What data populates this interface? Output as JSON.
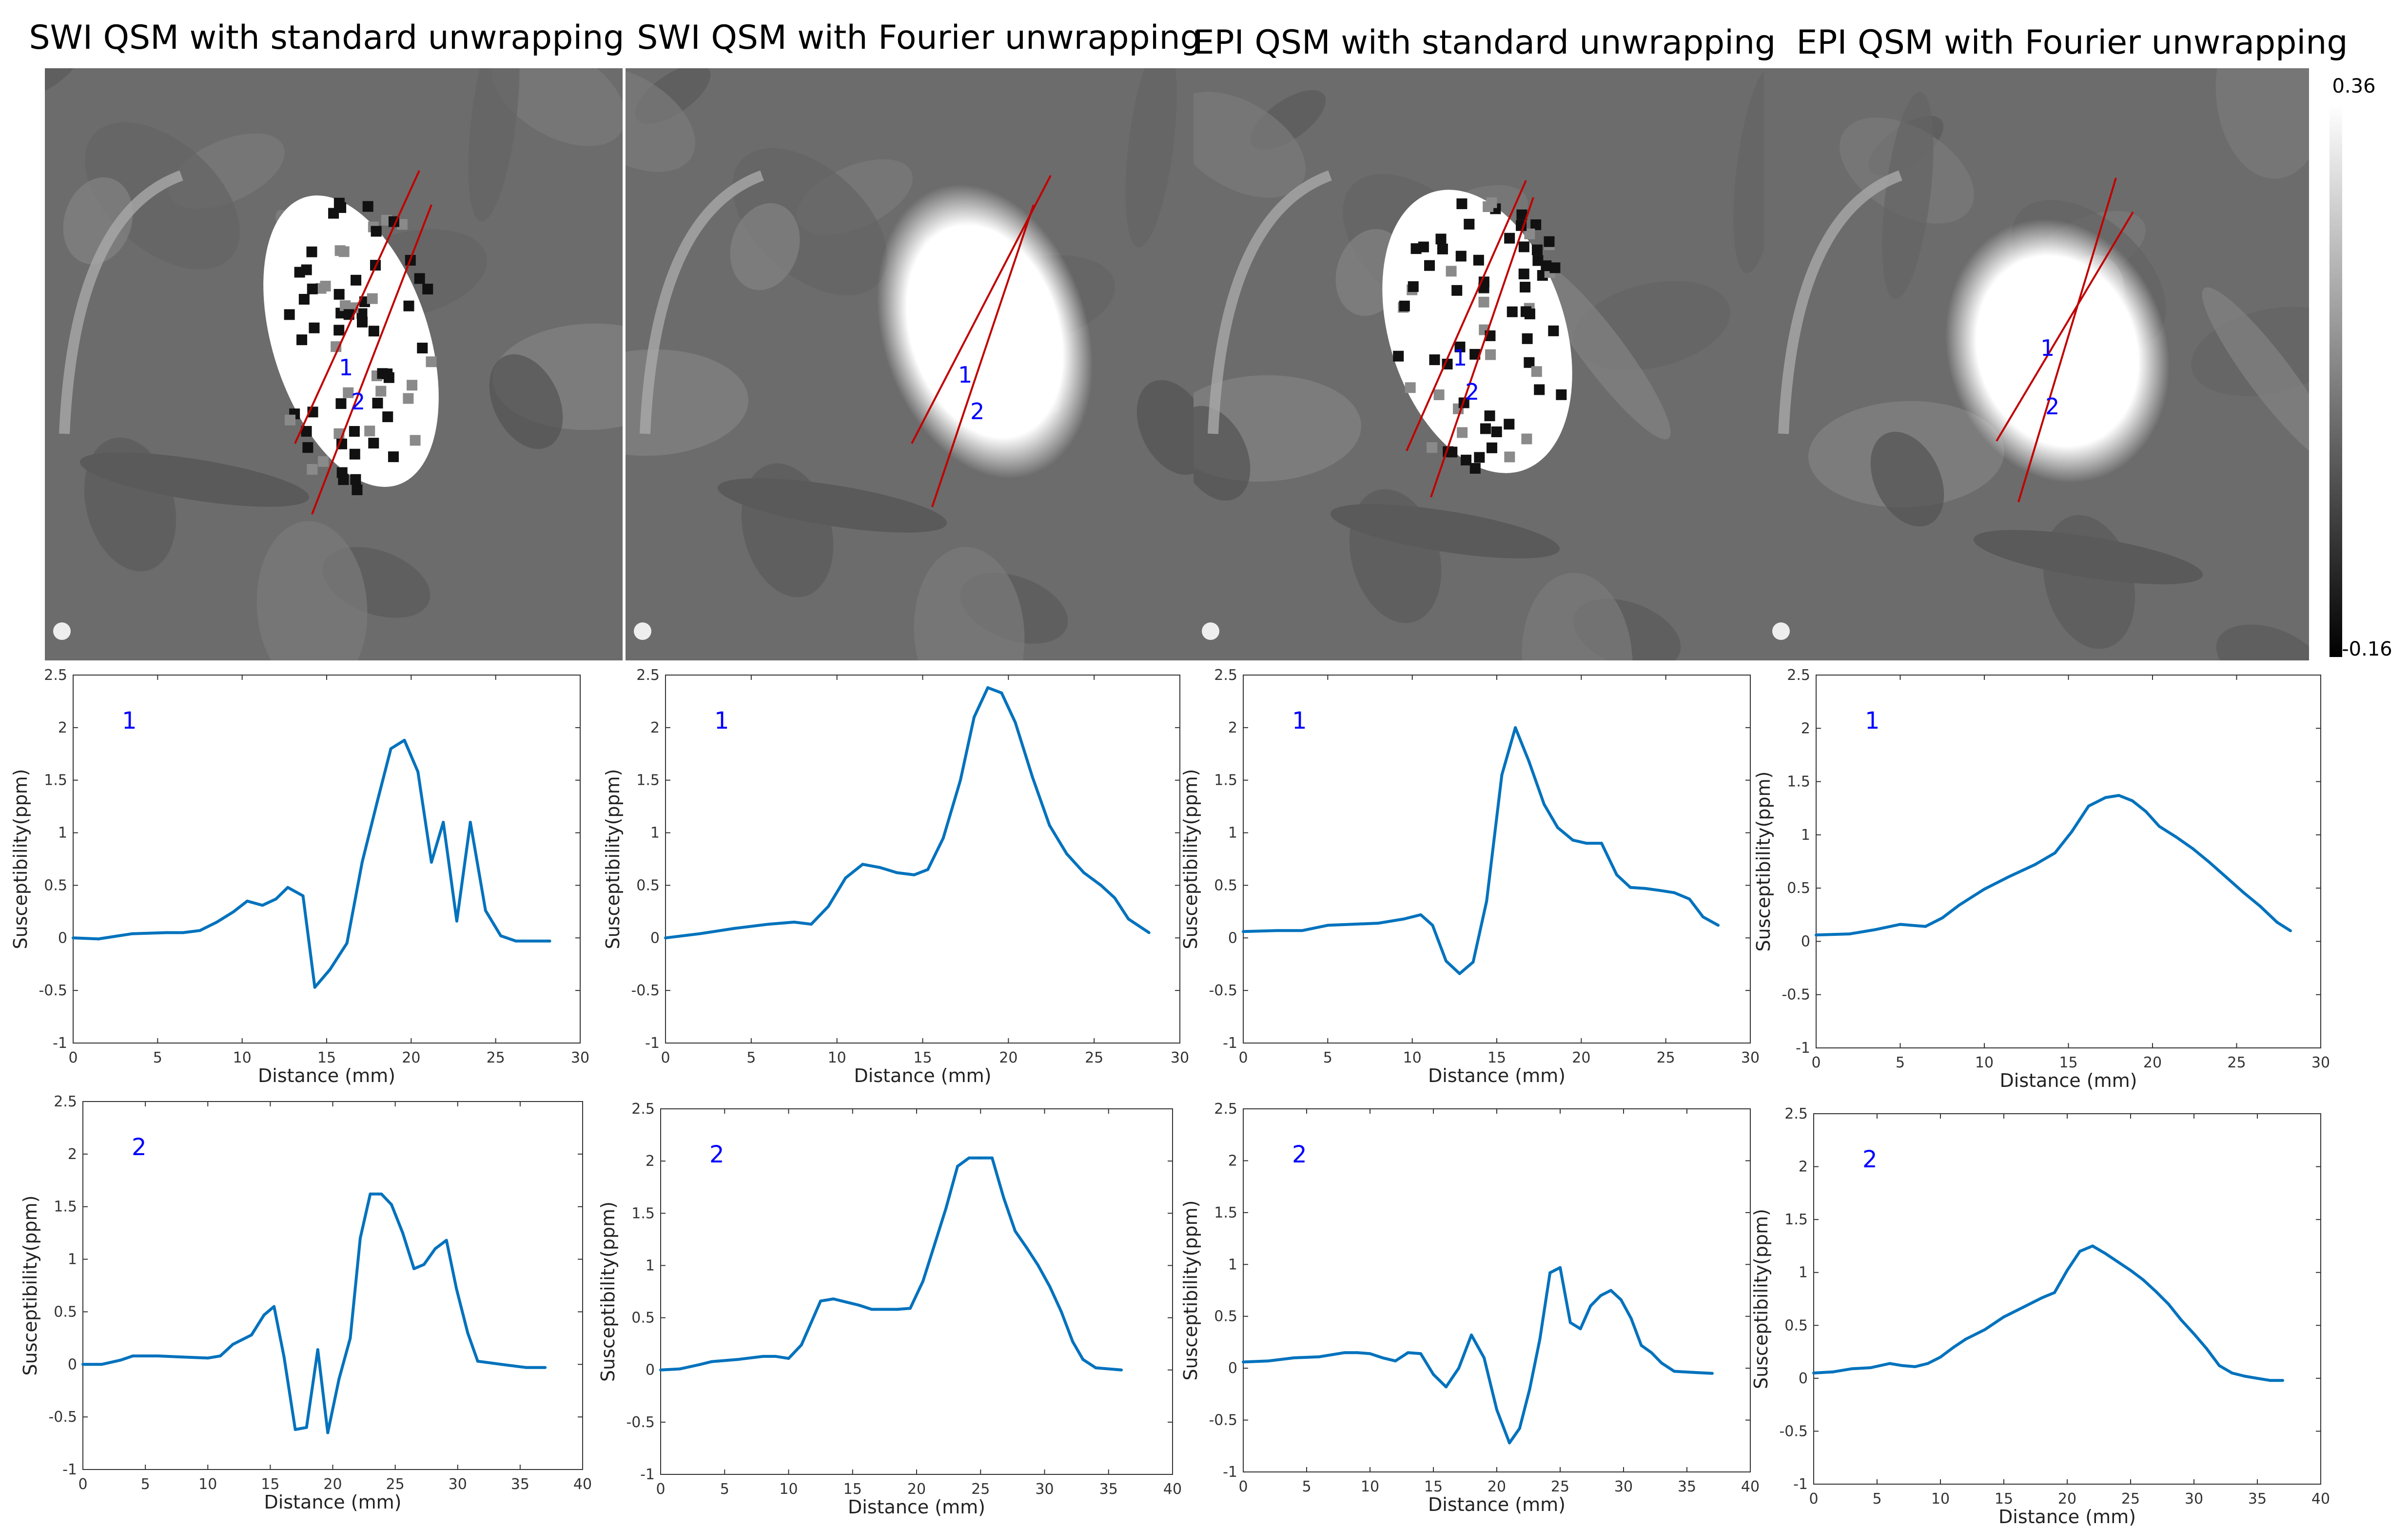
{
  "panels": [
    {
      "title": "SWI QSM with standard unwrapping",
      "mode": "raw"
    },
    {
      "title": "SWI QSM with Fourier unwrapping",
      "mode": "smooth"
    },
    {
      "title": "EPI QSM with standard unwrapping",
      "mode": "raw"
    },
    {
      "title": "EPI QSM with Fourier unwrapping",
      "mode": "smooth"
    }
  ],
  "image_line_labels": [
    "1",
    "2"
  ],
  "colorbar": {
    "max_label": "0.36",
    "min_label": "-0.16"
  },
  "colors": {
    "line": "#0072BD",
    "profile_line": "#C00000",
    "line_label": "#0000FF"
  },
  "chart_data": [
    {
      "type": "line",
      "panel": "SWI QSM with standard unwrapping",
      "label": "1",
      "xlabel": "Distance (mm)",
      "ylabel": "Susceptibility(ppm)",
      "xlim": [
        0,
        30
      ],
      "ylim": [
        -1,
        2.5
      ],
      "xticks": [
        0,
        5,
        10,
        15,
        20,
        25,
        30
      ],
      "yticks": [
        -1,
        -0.5,
        0,
        0.5,
        1,
        1.5,
        2,
        2.5
      ],
      "x": [
        0,
        1.5,
        3.5,
        5.5,
        6.5,
        7.5,
        8.5,
        9.5,
        10.3,
        11.2,
        12,
        12.7,
        13.6,
        14.3,
        15.2,
        16.2,
        17.1,
        18,
        18.8,
        19.6,
        20.4,
        21.2,
        21.9,
        22.7,
        23.5,
        24.4,
        25.3,
        26.2,
        28.2
      ],
      "y": [
        0,
        -0.01,
        0.04,
        0.05,
        0.05,
        0.07,
        0.15,
        0.25,
        0.35,
        0.31,
        0.37,
        0.48,
        0.4,
        -0.47,
        -0.3,
        -0.05,
        0.72,
        1.3,
        1.8,
        1.88,
        1.58,
        0.72,
        1.1,
        0.16,
        1.1,
        0.26,
        0.02,
        -0.03,
        -0.03
      ]
    },
    {
      "type": "line",
      "panel": "SWI QSM with Fourier unwrapping",
      "label": "1",
      "xlabel": "Distance (mm)",
      "ylabel": "Susceptibility(ppm)",
      "xlim": [
        0,
        30
      ],
      "ylim": [
        -1,
        2.5
      ],
      "xticks": [
        0,
        5,
        10,
        15,
        20,
        25,
        30
      ],
      "yticks": [
        -1,
        -0.5,
        0,
        0.5,
        1,
        1.5,
        2,
        2.5
      ],
      "x": [
        0,
        2,
        4,
        6,
        7.5,
        8.5,
        9.5,
        10.5,
        11.5,
        12.5,
        13.5,
        14.5,
        15.3,
        16.2,
        17.2,
        18,
        18.8,
        19.6,
        20.4,
        21.4,
        22.4,
        23.4,
        24.4,
        25.4,
        26.2,
        27,
        28.2
      ],
      "y": [
        0,
        0.04,
        0.09,
        0.13,
        0.15,
        0.13,
        0.3,
        0.57,
        0.7,
        0.67,
        0.62,
        0.6,
        0.65,
        0.95,
        1.5,
        2.1,
        2.38,
        2.33,
        2.05,
        1.53,
        1.07,
        0.8,
        0.62,
        0.5,
        0.38,
        0.18,
        0.05
      ]
    },
    {
      "type": "line",
      "panel": "EPI QSM with standard unwrapping",
      "label": "1",
      "xlabel": "Distance (mm)",
      "ylabel": "Susceptibility(ppm)",
      "xlim": [
        0,
        30
      ],
      "ylim": [
        -1,
        2.5
      ],
      "xticks": [
        0,
        5,
        10,
        15,
        20,
        25,
        30
      ],
      "yticks": [
        -1,
        -0.5,
        0,
        0.5,
        1,
        1.5,
        2,
        2.5
      ],
      "x": [
        0,
        2,
        3.5,
        5,
        6.5,
        8,
        9.5,
        10.5,
        11.2,
        12,
        12.8,
        13.6,
        14.4,
        15.3,
        16.1,
        16.9,
        17.8,
        18.6,
        19.5,
        20.3,
        21.2,
        22.1,
        22.9,
        23.8,
        24.7,
        25.5,
        26.4,
        27.2,
        28.1
      ],
      "y": [
        0.06,
        0.07,
        0.07,
        0.12,
        0.13,
        0.14,
        0.18,
        0.22,
        0.12,
        -0.22,
        -0.34,
        -0.23,
        0.35,
        1.55,
        2,
        1.68,
        1.27,
        1.05,
        0.93,
        0.9,
        0.9,
        0.6,
        0.48,
        0.47,
        0.45,
        0.43,
        0.37,
        0.2,
        0.12
      ]
    },
    {
      "type": "line",
      "panel": "EPI QSM with Fourier unwrapping",
      "label": "1",
      "xlabel": "Distance (mm)",
      "ylabel": "Susceptibility(ppm)",
      "xlim": [
        0,
        30
      ],
      "ylim": [
        -1,
        2.5
      ],
      "xticks": [
        0,
        5,
        10,
        15,
        20,
        25,
        30
      ],
      "yticks": [
        -1,
        -0.5,
        0,
        0.5,
        1,
        1.5,
        2,
        2.5
      ],
      "x": [
        0,
        2,
        3.5,
        5,
        6.5,
        7.5,
        8.5,
        10,
        11.5,
        13,
        14.2,
        15.2,
        16.2,
        17.2,
        18,
        18.8,
        19.6,
        20.4,
        21.4,
        22.4,
        23.4,
        24.4,
        25.4,
        26.4,
        27.4,
        28.2
      ],
      "y": [
        0.06,
        0.07,
        0.11,
        0.16,
        0.14,
        0.22,
        0.34,
        0.49,
        0.61,
        0.72,
        0.83,
        1.03,
        1.27,
        1.35,
        1.37,
        1.32,
        1.22,
        1.08,
        0.98,
        0.87,
        0.74,
        0.6,
        0.46,
        0.33,
        0.18,
        0.1
      ]
    },
    {
      "type": "line",
      "panel": "SWI QSM with standard unwrapping",
      "label": "2",
      "xlabel": "Distance (mm)",
      "ylabel": "Susceptibility(ppm)",
      "xlim": [
        0,
        40
      ],
      "ylim": [
        -1,
        2.5
      ],
      "xticks": [
        0,
        5,
        10,
        15,
        20,
        25,
        30,
        35,
        40
      ],
      "yticks": [
        -1,
        -0.5,
        0,
        0.5,
        1,
        1.5,
        2,
        2.5
      ],
      "x": [
        0,
        1.5,
        3,
        4,
        6,
        8,
        10,
        11,
        12,
        13.5,
        14.5,
        15.3,
        16.1,
        17,
        17.9,
        18.8,
        19.6,
        20.5,
        21.4,
        22.2,
        23,
        23.9,
        24.7,
        25.6,
        26.5,
        27.3,
        28.2,
        29.1,
        29.9,
        30.8,
        31.6,
        33.5,
        35.5,
        37
      ],
      "y": [
        0,
        0,
        0.04,
        0.08,
        0.08,
        0.07,
        0.06,
        0.08,
        0.19,
        0.28,
        0.47,
        0.55,
        0.07,
        -0.62,
        -0.6,
        0.14,
        -0.65,
        -0.14,
        0.25,
        1.2,
        1.62,
        1.62,
        1.52,
        1.25,
        0.91,
        0.95,
        1.1,
        1.18,
        0.72,
        0.3,
        0.03,
        0,
        -0.03,
        -0.03
      ]
    },
    {
      "type": "line",
      "panel": "SWI QSM with Fourier unwrapping",
      "label": "2",
      "xlabel": "Distance (mm)",
      "ylabel": "Susceptibility(ppm)",
      "xlim": [
        0,
        40
      ],
      "ylim": [
        -1,
        2.5
      ],
      "xticks": [
        0,
        5,
        10,
        15,
        20,
        25,
        30,
        35,
        40
      ],
      "yticks": [
        -1,
        -0.5,
        0,
        0.5,
        1,
        1.5,
        2,
        2.5
      ],
      "x": [
        0,
        1.5,
        3,
        4,
        6,
        8,
        9,
        10,
        11,
        12.5,
        13.5,
        14.5,
        15.5,
        16.5,
        17.5,
        18.5,
        19.5,
        20.5,
        21.4,
        22.3,
        23.2,
        24.1,
        25,
        25.9,
        26.8,
        27.7,
        28.6,
        29.5,
        30.4,
        31.3,
        32.2,
        33,
        34,
        36
      ],
      "y": [
        0,
        0.01,
        0.05,
        0.08,
        0.1,
        0.13,
        0.13,
        0.11,
        0.24,
        0.66,
        0.68,
        0.65,
        0.62,
        0.58,
        0.58,
        0.58,
        0.59,
        0.85,
        1.2,
        1.55,
        1.95,
        2.03,
        2.03,
        2.03,
        1.65,
        1.33,
        1.17,
        1,
        0.8,
        0.56,
        0.27,
        0.1,
        0.02,
        0
      ]
    },
    {
      "type": "line",
      "panel": "EPI QSM with standard unwrapping",
      "label": "2",
      "xlabel": "Distance (mm)",
      "ylabel": "Susceptibility(ppm)",
      "xlim": [
        0,
        40
      ],
      "ylim": [
        -1,
        2.5
      ],
      "xticks": [
        0,
        5,
        10,
        15,
        20,
        25,
        30,
        35,
        40
      ],
      "yticks": [
        -1,
        -0.5,
        0,
        0.5,
        1,
        1.5,
        2,
        2.5
      ],
      "x": [
        0,
        2,
        4,
        6,
        8,
        9,
        10,
        11,
        12,
        13,
        14,
        15,
        16,
        17,
        18,
        19,
        20,
        21,
        21.8,
        22.6,
        23.4,
        24.2,
        25,
        25.8,
        26.6,
        27.4,
        28.2,
        29,
        29.8,
        30.6,
        31.4,
        32.2,
        33,
        34,
        35.5,
        37
      ],
      "y": [
        0.06,
        0.07,
        0.1,
        0.11,
        0.15,
        0.15,
        0.14,
        0.1,
        0.07,
        0.15,
        0.14,
        -0.06,
        -0.18,
        0,
        0.32,
        0.1,
        -0.4,
        -0.72,
        -0.58,
        -0.2,
        0.28,
        0.92,
        0.97,
        0.44,
        0.38,
        0.6,
        0.7,
        0.75,
        0.66,
        0.48,
        0.22,
        0.15,
        0.05,
        -0.03,
        -0.04,
        -0.05
      ]
    },
    {
      "type": "line",
      "panel": "EPI QSM with Fourier unwrapping",
      "label": "2",
      "xlabel": "Distance (mm)",
      "ylabel": "Susceptibility(ppm)",
      "xlim": [
        0,
        40
      ],
      "ylim": [
        -1,
        2.5
      ],
      "xticks": [
        0,
        5,
        10,
        15,
        20,
        25,
        30,
        35,
        40
      ],
      "yticks": [
        -1,
        -0.5,
        0,
        0.5,
        1,
        1.5,
        2,
        2.5
      ],
      "x": [
        0,
        1.5,
        3,
        4.5,
        6,
        7,
        8,
        9,
        10,
        11,
        12,
        13.5,
        15,
        16.5,
        18,
        19,
        20,
        21,
        22,
        23,
        24,
        25,
        26,
        27,
        28,
        29,
        30,
        31,
        32,
        33,
        34,
        35,
        36,
        37
      ],
      "y": [
        0.05,
        0.06,
        0.09,
        0.1,
        0.14,
        0.12,
        0.11,
        0.14,
        0.2,
        0.29,
        0.37,
        0.46,
        0.58,
        0.67,
        0.76,
        0.81,
        1.02,
        1.2,
        1.25,
        1.18,
        1.1,
        1.02,
        0.93,
        0.82,
        0.7,
        0.55,
        0.42,
        0.28,
        0.12,
        0.05,
        0.02,
        0,
        -0.02,
        -0.02
      ]
    }
  ]
}
